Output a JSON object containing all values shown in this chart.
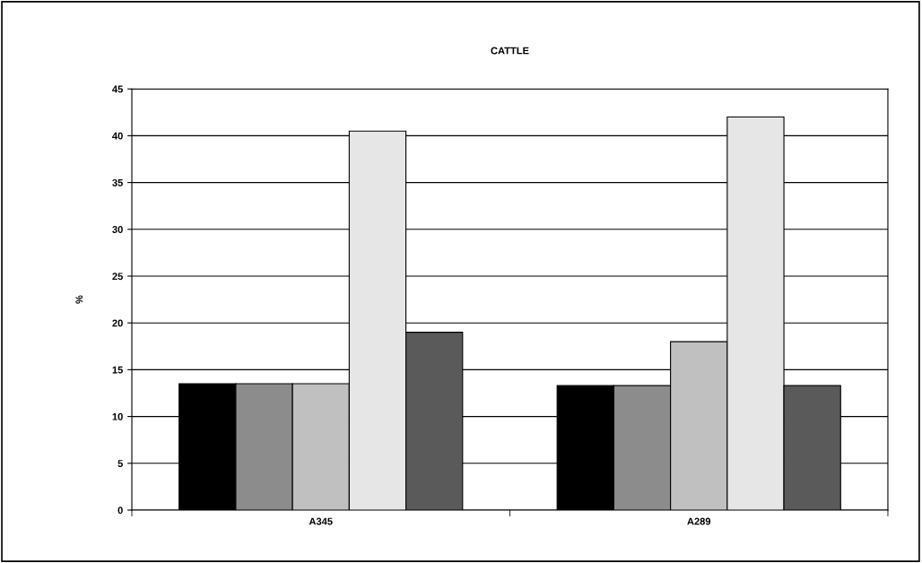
{
  "chart_data": {
    "type": "bar",
    "title": "CATTLE",
    "ylabel": "%",
    "categories": [
      "A345",
      "A289"
    ],
    "series": [
      {
        "color": "#000000",
        "values": [
          13.5,
          13.3
        ]
      },
      {
        "color": "#8c8c8c",
        "values": [
          13.5,
          13.3
        ]
      },
      {
        "color": "#c0c0c0",
        "values": [
          13.5,
          18
        ]
      },
      {
        "color": "#e6e6e6",
        "values": [
          40.5,
          42
        ]
      },
      {
        "color": "#5a5a5a",
        "values": [
          19,
          13.3
        ]
      }
    ],
    "ylim": [
      0,
      45
    ],
    "yticks": [
      0,
      5,
      10,
      15,
      20,
      25,
      30,
      35,
      40,
      45
    ],
    "grid": "y",
    "legend": false
  }
}
